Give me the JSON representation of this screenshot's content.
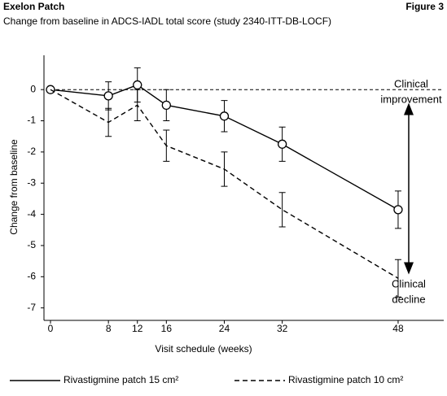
{
  "chart_data": {
    "type": "line",
    "title": "Exelon Patch",
    "figure_label": "Figure 3",
    "subtitle": "Change from baseline in ADCS-IADL total score (study 2340-ITT-DB-LOCF)",
    "x_label": "Visit schedule (weeks)",
    "y_label": "Change from baseline",
    "x": [
      0,
      8,
      12,
      16,
      24,
      32,
      48
    ],
    "xlim": [
      0,
      54.3
    ],
    "xticks": [
      0,
      8,
      12,
      16,
      24,
      32,
      48
    ],
    "ylim": [
      -7.4,
      1.1
    ],
    "yticks": [
      0,
      -1,
      -2,
      -3,
      -4,
      -5,
      -6,
      -7
    ],
    "reference_line": 0,
    "series": [
      {
        "name": "Rivastigmine patch 15 cm²",
        "color": "#000000",
        "dash": "solid",
        "marker": "circle",
        "values": [
          0,
          -0.2,
          0.15,
          -0.5,
          -0.85,
          -1.75,
          -3.85
        ],
        "errors": [
          0,
          0.45,
          0.55,
          0.5,
          0.5,
          0.55,
          0.6
        ]
      },
      {
        "name": "Rivastigmine patch 10 cm²",
        "color": "#000000",
        "dash": "dashed",
        "marker": "none",
        "values": [
          0,
          -1.05,
          -0.5,
          -1.8,
          -2.55,
          -3.85,
          -6.05
        ],
        "errors": [
          0,
          0.45,
          0.5,
          0.5,
          0.55,
          0.55,
          0.6
        ]
      }
    ],
    "annotations": [
      {
        "lines": [
          "Clinical",
          "improvement"
        ]
      },
      {
        "lines": [
          "Clinical",
          "decline"
        ]
      }
    ]
  }
}
